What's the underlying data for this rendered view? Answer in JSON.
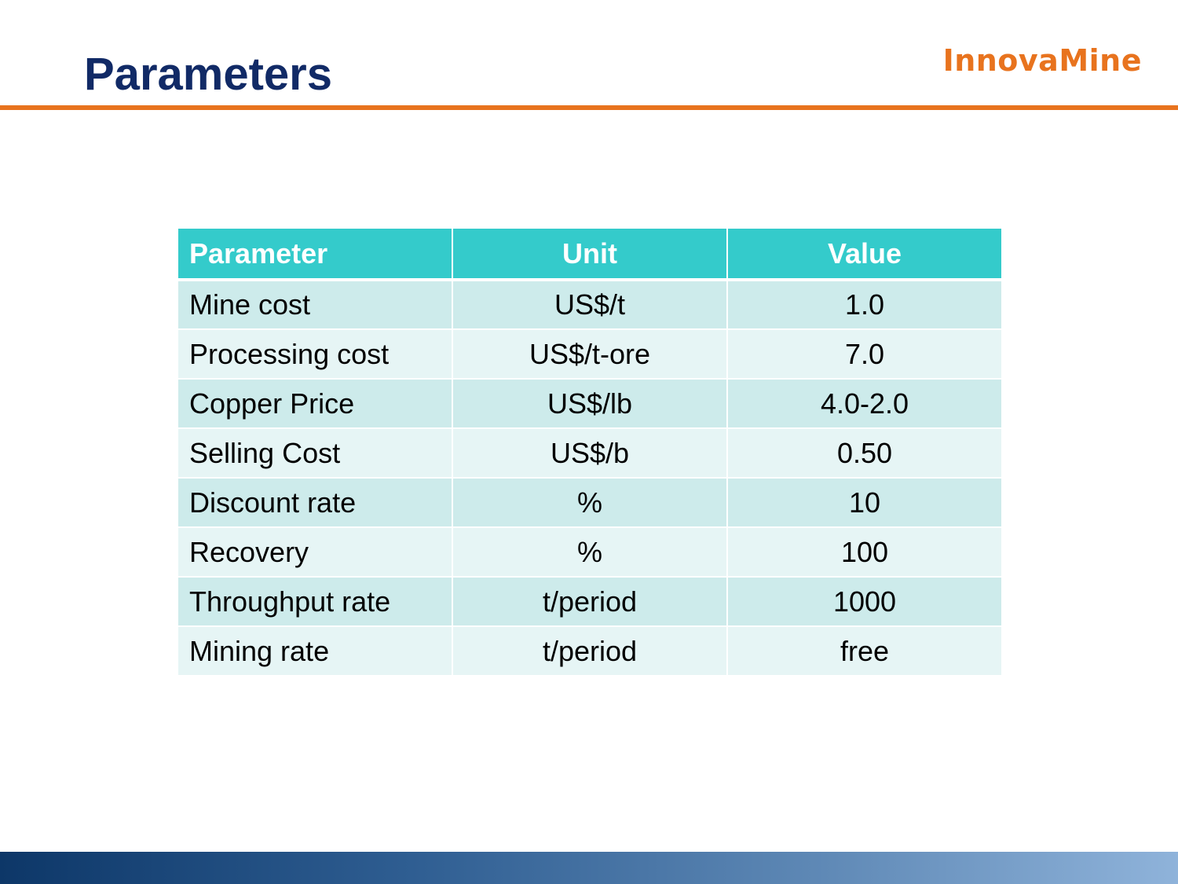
{
  "slide": {
    "title": "Parameters",
    "logo_text": "InnovaMine"
  },
  "colors": {
    "title": "#112a66",
    "accent": "#e8731e",
    "table_header": "#34cbcb",
    "row_dark": "#cdebeb",
    "row_light": "#e6f5f5"
  },
  "table": {
    "headers": [
      "Parameter",
      "Unit",
      "Value"
    ],
    "rows": [
      [
        "Mine cost",
        "US$/t",
        "1.0"
      ],
      [
        "Processing cost",
        "US$/t-ore",
        "7.0"
      ],
      [
        "Copper Price",
        "US$/lb",
        "4.0-2.0"
      ],
      [
        "Selling Cost",
        "US$/b",
        "0.50"
      ],
      [
        "Discount rate",
        "%",
        "10"
      ],
      [
        "Recovery",
        "%",
        "100"
      ],
      [
        "Throughput rate",
        "t/period",
        "1000"
      ],
      [
        "Mining rate",
        "t/period",
        "free"
      ]
    ]
  }
}
